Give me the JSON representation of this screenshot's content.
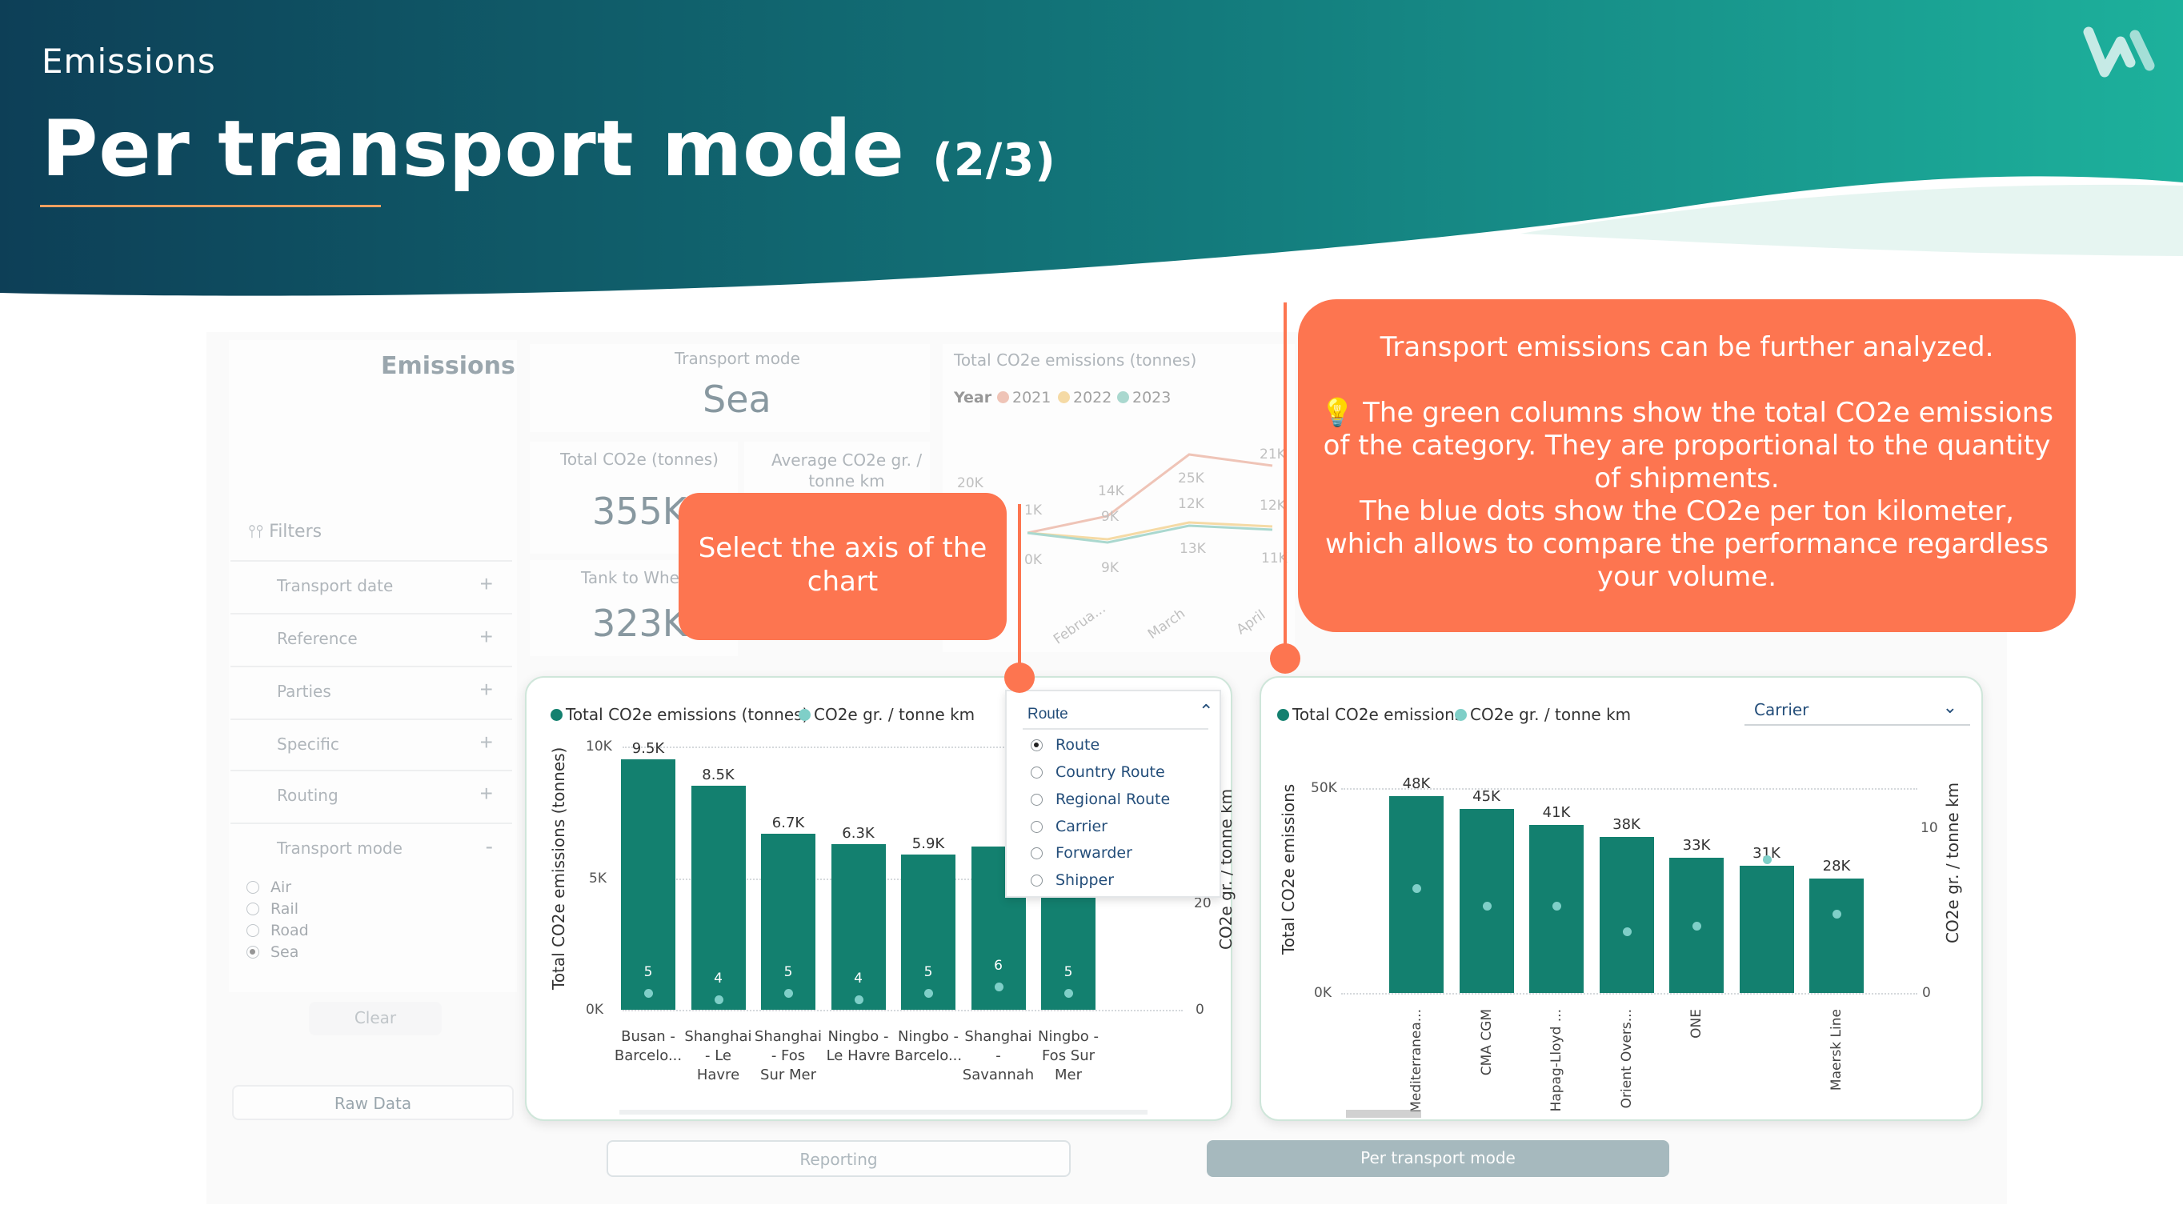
{
  "header": {
    "kicker": "Emissions",
    "title": "Per transport mode",
    "title_suffix": "(2/3)"
  },
  "sidebar": {
    "title": "Emissions",
    "filters_label": "Filters",
    "filters": [
      {
        "label": "Transport date",
        "sign": "+"
      },
      {
        "label": "Reference",
        "sign": "+"
      },
      {
        "label": "Parties",
        "sign": "+"
      },
      {
        "label": "Specific",
        "sign": "+"
      },
      {
        "label": "Routing",
        "sign": "+"
      },
      {
        "label": "Transport mode",
        "sign": "-"
      }
    ],
    "modes": [
      {
        "label": "Air",
        "selected": false
      },
      {
        "label": "Rail",
        "selected": false
      },
      {
        "label": "Road",
        "selected": false
      },
      {
        "label": "Sea",
        "selected": true
      }
    ],
    "clear": "Clear",
    "raw_data": "Raw Data"
  },
  "kpis": {
    "transport_mode_label": "Transport mode",
    "transport_mode_value": "Sea",
    "total_label": "Total CO2e (tonnes)",
    "total_value": "355K",
    "avg_label": "Average CO2e gr. / tonne km",
    "ttw_label": "Tank to Whee",
    "ttw_value": "323K"
  },
  "line_chart": {
    "title": "Total CO2e emissions (tonnes)",
    "legend_title": "Year",
    "years": [
      {
        "name": "2021",
        "color": "#e8a08a"
      },
      {
        "name": "2022",
        "color": "#f2c56d"
      },
      {
        "name": "2023",
        "color": "#76c2b3"
      }
    ],
    "labels": [
      "20K",
      "14K",
      "25K",
      "21K",
      "1K",
      "9K",
      "12K",
      "12K",
      "0K",
      "9K",
      "13K",
      "11K"
    ],
    "months": [
      "Februa...",
      "March",
      "April"
    ]
  },
  "route_chart": {
    "legend": [
      "Total CO2e emissions (tonnes)",
      "CO2e gr. / tonne km"
    ],
    "y_label": "Total CO2e emissions (tonnes)",
    "y2_label": "CO2e gr. / tonne km",
    "y_ticks": [
      "10K",
      "5K",
      "0K"
    ],
    "y2_ticks": [
      "20",
      "0"
    ],
    "dropdown_title": "Route",
    "dropdown_options": [
      {
        "label": "Route",
        "selected": true
      },
      {
        "label": "Country Route",
        "selected": false
      },
      {
        "label": "Regional Route",
        "selected": false
      },
      {
        "label": "Carrier",
        "selected": false
      },
      {
        "label": "Forwarder",
        "selected": false
      },
      {
        "label": "Shipper",
        "selected": false
      }
    ]
  },
  "carrier_chart": {
    "legend": [
      "Total CO2e emissions",
      "CO2e gr. / tonne km"
    ],
    "y_label": "Total CO2e emissions",
    "y2_label": "CO2e gr. / tonne km",
    "y_ticks": [
      "50K",
      "0K"
    ],
    "y2_ticks": [
      "10",
      "0"
    ],
    "dropdown": "Carrier"
  },
  "chart_data": [
    {
      "type": "bar",
      "title": "Total CO2e emissions (tonnes) / CO2e gr. / tonne km by Route",
      "categories": [
        "Busan - Barcelo...",
        "Shanghai - Le Havre",
        "Shanghai - Fos Sur Mer",
        "Ningbo - Le Havre",
        "Ningbo - Barcelo...",
        "Shanghai - Savannah",
        "Ningbo - Fos Sur Mer"
      ],
      "value_labels": [
        "9.5K",
        "8.5K",
        "6.7K",
        "6.3K",
        "5.9K",
        "",
        ""
      ],
      "series": [
        {
          "name": "Total CO2e emissions (tonnes)",
          "values": [
            9500,
            8500,
            6700,
            6300,
            5900,
            6200,
            6200
          ]
        },
        {
          "name": "CO2e gr. / tonne km",
          "values": [
            5,
            4,
            5,
            4,
            5,
            6,
            5
          ]
        }
      ],
      "ylim": [
        0,
        10000
      ]
    },
    {
      "type": "bar",
      "title": "Total CO2e emissions / CO2e gr. / tonne km by Carrier",
      "categories": [
        "Mediterranea...",
        "CMA CGM",
        "Hapag-Lloyd ...",
        "Orient Overs...",
        "ONE",
        "",
        "Maersk Line"
      ],
      "value_labels": [
        "48K",
        "45K",
        "41K",
        "38K",
        "33K",
        "31K",
        "28K"
      ],
      "series": [
        {
          "name": "Total CO2e emissions",
          "values": [
            48000,
            45000,
            41000,
            38000,
            33000,
            31000,
            28000
          ]
        },
        {
          "name": "CO2e gr. / tonne km",
          "values": [
            8,
            7,
            7,
            5.5,
            5.8,
            9.7,
            6.5
          ]
        }
      ],
      "ylim": [
        0,
        50000
      ]
    }
  ],
  "callouts": {
    "axis": "Select the axis of the chart",
    "analysis": [
      "Transport emissions can be further analyzed.",
      "💡 The green columns show the total CO2e emissions of the category. They are proportional to the quantity of shipments.",
      "The blue dots show the CO2e per ton kilometer, which allows to compare the performance regardless your volume."
    ]
  },
  "tabs": {
    "reporting": "Reporting",
    "per_mode": "Per transport mode"
  }
}
